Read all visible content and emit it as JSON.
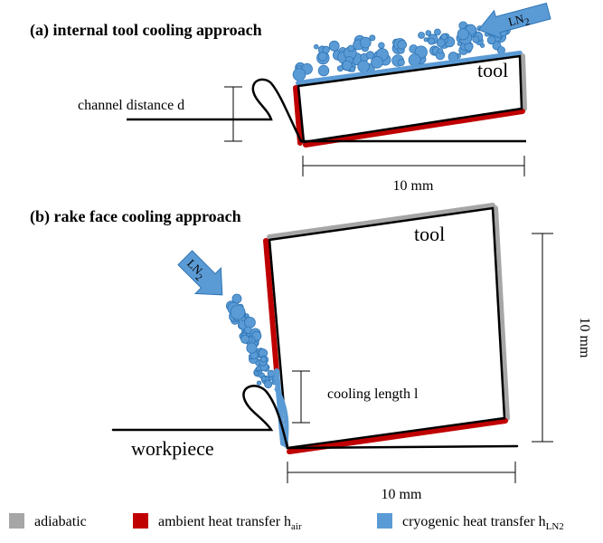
{
  "panel_a": {
    "title": "(a) internal tool cooling approach",
    "coolant": {
      "label": "LN",
      "subscript": "2"
    },
    "tool": "tool",
    "channel_label": "channel distance d",
    "length": "10 mm"
  },
  "panel_b": {
    "title": "(b) rake face cooling approach",
    "coolant": {
      "label": "LN",
      "subscript": "2"
    },
    "tool": "tool",
    "height": "10 mm",
    "cooling_label": "cooling length l",
    "workpiece": "workpiece",
    "length": "10 mm"
  },
  "legend": [
    {
      "label": "adiabatic"
    },
    {
      "label": "ambient heat transfer h",
      "subscript": "air"
    },
    {
      "label": "cryogenic heat transfer h",
      "subscript": "LN2"
    }
  ]
}
